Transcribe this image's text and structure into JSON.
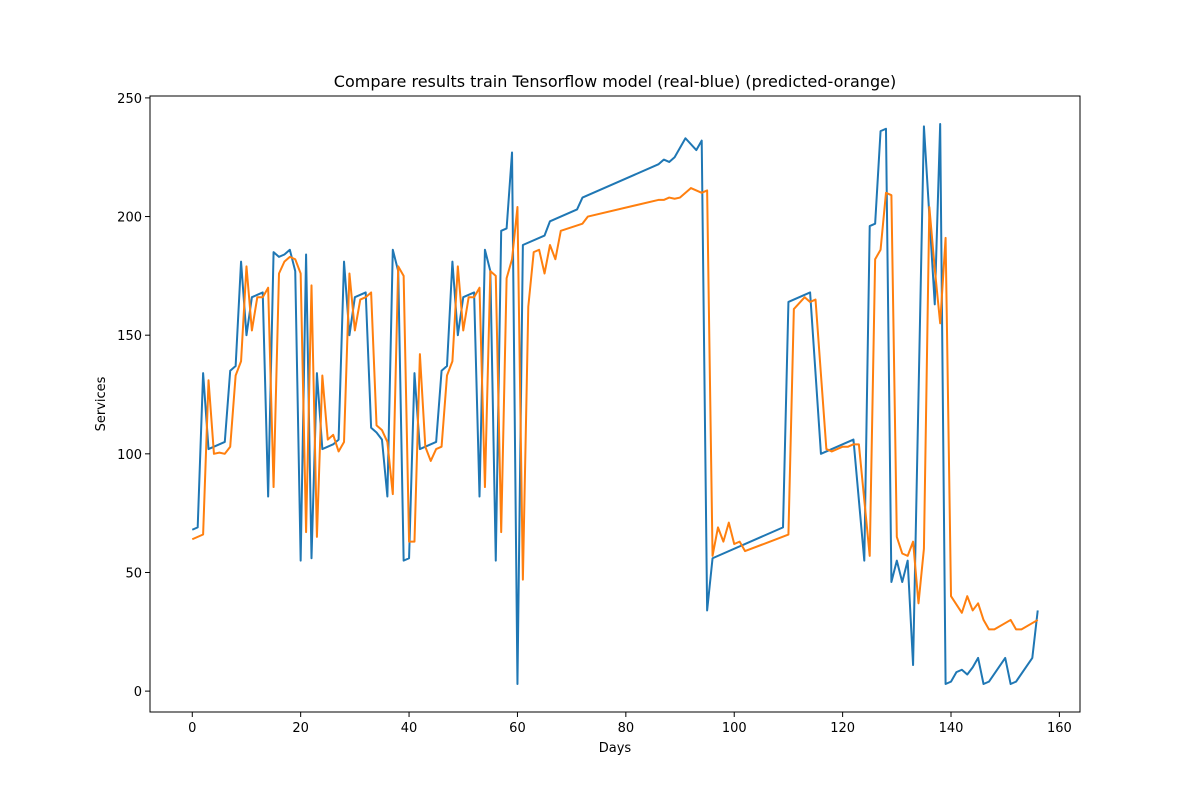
{
  "chart_data": {
    "type": "line",
    "title": "Compare results train Tensorflow model (real-blue) (predicted-orange)",
    "xlabel": "Days",
    "ylabel": "Services",
    "xlim": [
      -7.8,
      163.8
    ],
    "ylim": [
      -8.8,
      250.8
    ],
    "xticks": [
      0,
      20,
      40,
      60,
      80,
      100,
      120,
      140,
      160
    ],
    "yticks": [
      0,
      50,
      100,
      150,
      200,
      250
    ],
    "series": [
      {
        "color": "#1f77b4",
        "x": [
          0,
          1,
          2,
          3,
          4,
          5,
          6,
          7,
          8,
          9,
          10,
          11,
          12,
          13,
          14,
          15,
          16,
          17,
          18,
          19,
          20,
          21,
          22,
          23,
          24,
          25,
          26,
          27,
          28,
          29,
          30,
          31,
          32,
          33,
          34,
          35,
          36,
          37,
          38,
          39,
          40,
          41,
          42,
          43,
          44,
          45,
          46,
          47,
          48,
          49,
          50,
          51,
          52,
          53,
          54,
          55,
          56,
          57,
          58,
          59,
          60,
          61,
          65,
          66,
          71,
          72,
          86,
          87,
          88,
          89,
          91,
          93,
          94,
          95,
          96,
          109,
          110,
          114,
          116,
          118,
          122,
          124,
          125,
          126,
          127,
          128,
          129,
          130,
          131,
          132,
          133,
          135,
          137,
          138,
          139,
          140,
          141,
          142,
          143,
          144,
          145,
          146,
          147,
          150,
          151,
          152,
          155,
          156
        ],
        "values": [
          68,
          69,
          134,
          102,
          103,
          104,
          105,
          135,
          137,
          181,
          150,
          166,
          167,
          168,
          82,
          185,
          183,
          184,
          186,
          177,
          55,
          184,
          56,
          134,
          102,
          103,
          104,
          106,
          181,
          150,
          166,
          167,
          168,
          111,
          109,
          106,
          82,
          186,
          177,
          55,
          56,
          134,
          102,
          103,
          104,
          105,
          135,
          137,
          181,
          150,
          166,
          167,
          168,
          82,
          186,
          177,
          55,
          194,
          195,
          227,
          3,
          188,
          192,
          198,
          203,
          208,
          222,
          224,
          223,
          225,
          233,
          228,
          232,
          34,
          56,
          69,
          164,
          168,
          100,
          102,
          106,
          55,
          196,
          197,
          236,
          237,
          46,
          55,
          46,
          55,
          11,
          238,
          163,
          239,
          3,
          4,
          8,
          9,
          7,
          10,
          14,
          3,
          4,
          14,
          3,
          4,
          14,
          34
        ]
      },
      {
        "color": "#ff7f0e",
        "x": [
          0,
          2,
          3,
          4,
          5,
          6,
          7,
          8,
          9,
          10,
          11,
          12,
          13,
          14,
          15,
          16,
          17,
          18,
          19,
          20,
          21,
          22,
          23,
          24,
          25,
          26,
          27,
          28,
          29,
          30,
          31,
          32,
          33,
          34,
          35,
          36,
          37,
          38,
          39,
          40,
          41,
          42,
          43,
          44,
          45,
          46,
          47,
          48,
          49,
          50,
          51,
          52,
          53,
          54,
          55,
          56,
          57,
          58,
          59,
          60,
          61,
          62,
          63,
          64,
          65,
          66,
          67,
          68,
          72,
          73,
          86,
          87,
          88,
          89,
          90,
          92,
          94,
          95,
          96,
          97,
          98,
          99,
          100,
          101,
          102,
          110,
          111,
          113,
          114,
          115,
          117,
          118,
          120,
          121,
          122,
          123,
          125,
          126,
          127,
          128,
          129,
          130,
          131,
          132,
          133,
          134,
          135,
          136,
          137,
          138,
          139,
          140,
          142,
          143,
          144,
          145,
          146,
          147,
          148,
          151,
          152,
          153,
          156
        ],
        "values": [
          64,
          66,
          131,
          100,
          100.5,
          100,
          103,
          133,
          139,
          179,
          152,
          166,
          166,
          170,
          86,
          176,
          181,
          183,
          182,
          176,
          67,
          171,
          65,
          133,
          106,
          108,
          101,
          105,
          176,
          152,
          165,
          166,
          168,
          112,
          110,
          105,
          83,
          179,
          175,
          63,
          63,
          142,
          103,
          97,
          102,
          103,
          133,
          139,
          179,
          152,
          166,
          166,
          170,
          86,
          177,
          175,
          67,
          174,
          182,
          204,
          47,
          162,
          185,
          186,
          176,
          188,
          182,
          194,
          197,
          200,
          207,
          207,
          208,
          207.5,
          208,
          212,
          210,
          211,
          57,
          69,
          63,
          71,
          62,
          63,
          59,
          66,
          161,
          166,
          164,
          165,
          102,
          101,
          103,
          103,
          104,
          104,
          57,
          182,
          186,
          210,
          209,
          65,
          58,
          57,
          63,
          37,
          60,
          204,
          178,
          155,
          191,
          40,
          33,
          40,
          34,
          37,
          30,
          26,
          26,
          30,
          26,
          26,
          30
        ]
      }
    ]
  }
}
